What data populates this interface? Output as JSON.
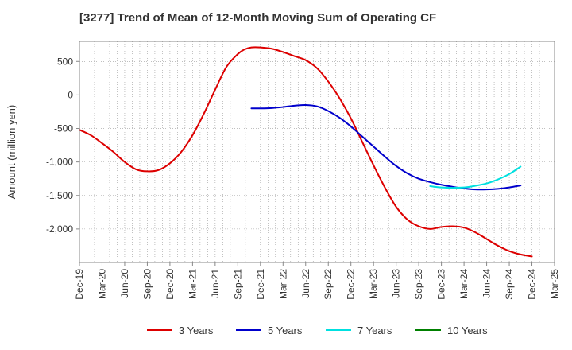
{
  "chart_data": {
    "type": "line",
    "title": "[3277]  Trend of Mean of 12-Month Moving Sum of Operating CF",
    "xlabel": "",
    "ylabel": "Amount (million yen)",
    "ylim": [
      -2500,
      800
    ],
    "yticks": [
      500,
      0,
      -500,
      -1000,
      -1500,
      -2000
    ],
    "ytick_labels": [
      "500",
      "0",
      "-500",
      "-1,000",
      "-1,500",
      "-2,000"
    ],
    "xticks": [
      "Dec-19",
      "Mar-20",
      "Jun-20",
      "Sep-20",
      "Dec-20",
      "Mar-21",
      "Jun-21",
      "Sep-21",
      "Dec-21",
      "Mar-22",
      "Jun-22",
      "Sep-22",
      "Dec-22",
      "Mar-23",
      "Jun-23",
      "Sep-23",
      "Dec-23",
      "Mar-24",
      "Jun-24",
      "Sep-24",
      "Dec-24",
      "Mar-25"
    ],
    "grid": true,
    "legend_position": "bottom",
    "series": [
      {
        "name": "3 Years",
        "color": "#dd0000",
        "points": [
          [
            0,
            -520
          ],
          [
            0.5,
            -600
          ],
          [
            1,
            -720
          ],
          [
            1.5,
            -850
          ],
          [
            2,
            -1000
          ],
          [
            2.5,
            -1110
          ],
          [
            3,
            -1140
          ],
          [
            3.5,
            -1120
          ],
          [
            4,
            -1020
          ],
          [
            4.5,
            -850
          ],
          [
            5,
            -600
          ],
          [
            5.5,
            -280
          ],
          [
            6,
            80
          ],
          [
            6.5,
            420
          ],
          [
            7,
            610
          ],
          [
            7.3,
            680
          ],
          [
            7.6,
            710
          ],
          [
            8,
            710
          ],
          [
            8.5,
            690
          ],
          [
            9,
            640
          ],
          [
            9.5,
            580
          ],
          [
            10,
            520
          ],
          [
            10.5,
            400
          ],
          [
            11,
            200
          ],
          [
            11.5,
            -50
          ],
          [
            12,
            -350
          ],
          [
            12.5,
            -700
          ],
          [
            13,
            -1050
          ],
          [
            13.5,
            -1380
          ],
          [
            14,
            -1670
          ],
          [
            14.5,
            -1860
          ],
          [
            15,
            -1960
          ],
          [
            15.5,
            -2000
          ],
          [
            16,
            -1970
          ],
          [
            16.5,
            -1960
          ],
          [
            17,
            -1980
          ],
          [
            17.5,
            -2050
          ],
          [
            18,
            -2150
          ],
          [
            18.5,
            -2250
          ],
          [
            19,
            -2330
          ],
          [
            19.5,
            -2380
          ],
          [
            20,
            -2410
          ]
        ]
      },
      {
        "name": "5 Years",
        "color": "#0000cc",
        "points": [
          [
            7.6,
            -200
          ],
          [
            8,
            -200
          ],
          [
            8.5,
            -195
          ],
          [
            9,
            -180
          ],
          [
            9.5,
            -160
          ],
          [
            10,
            -150
          ],
          [
            10.5,
            -170
          ],
          [
            11,
            -240
          ],
          [
            11.5,
            -340
          ],
          [
            12,
            -470
          ],
          [
            12.5,
            -620
          ],
          [
            13,
            -770
          ],
          [
            13.5,
            -920
          ],
          [
            14,
            -1060
          ],
          [
            14.5,
            -1170
          ],
          [
            15,
            -1250
          ],
          [
            15.5,
            -1300
          ],
          [
            16,
            -1340
          ],
          [
            16.5,
            -1370
          ],
          [
            17,
            -1395
          ],
          [
            17.5,
            -1410
          ],
          [
            18,
            -1410
          ],
          [
            18.5,
            -1400
          ],
          [
            19,
            -1380
          ],
          [
            19.5,
            -1350
          ]
        ]
      },
      {
        "name": "7 Years",
        "color": "#00e0e0",
        "points": [
          [
            15.5,
            -1360
          ],
          [
            16,
            -1380
          ],
          [
            16.5,
            -1385
          ],
          [
            17,
            -1380
          ],
          [
            17.5,
            -1355
          ],
          [
            18,
            -1320
          ],
          [
            18.5,
            -1260
          ],
          [
            19,
            -1180
          ],
          [
            19.5,
            -1070
          ]
        ]
      },
      {
        "name": "10 Years",
        "color": "#008000",
        "points": []
      }
    ]
  }
}
